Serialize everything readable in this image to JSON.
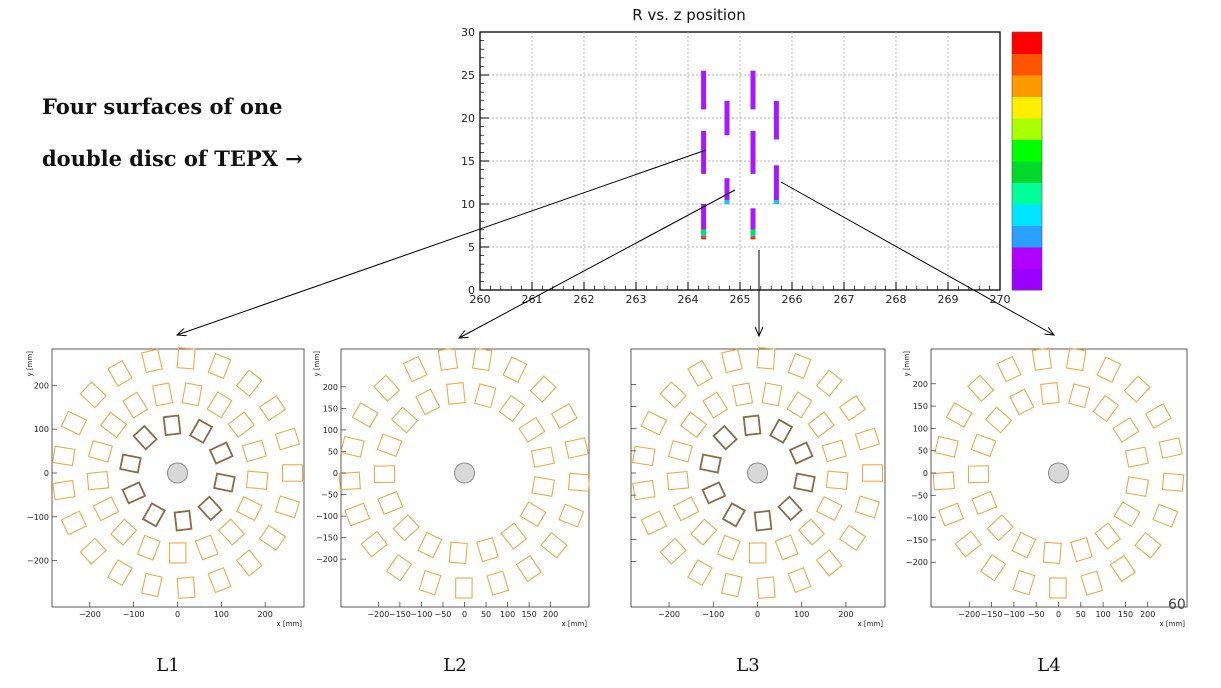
{
  "caption": {
    "line1": "Four surfaces of one",
    "line2": "double disc of TEPX →"
  },
  "colors": {
    "outer_modules": "#f2a94b",
    "inner_modules": "#8b6a4a",
    "beampipe_fill": "#d8d8d8",
    "beampipe_stroke": "#888888",
    "clusters": "#a619ff",
    "grid": "#9a9a9a"
  },
  "chart_data": {
    "type": "scatter",
    "title": "R vs. z position",
    "xlim": [
      260,
      270
    ],
    "ylim": [
      0,
      30
    ],
    "x_ticks": [
      "260",
      "261",
      "262",
      "263",
      "264",
      "265",
      "266",
      "267",
      "268",
      "269",
      "270"
    ],
    "y_ticks": [
      "0",
      "5",
      "10",
      "15",
      "20",
      "25",
      "30"
    ],
    "grid": true,
    "colorbar": [
      "#9b00ff",
      "#b000ff",
      "#2aa0ff",
      "#00e5ff",
      "#00ff9a",
      "#00d92a",
      "#00ff00",
      "#aaff00",
      "#ffee00",
      "#ff9900",
      "#ff5500",
      "#ff0000"
    ],
    "series": [
      {
        "name": "L1",
        "z": 264.3,
        "segments": [
          [
            6,
            10
          ],
          [
            13.5,
            18.5
          ],
          [
            21,
            25.5
          ]
        ]
      },
      {
        "name": "L2",
        "z": 264.75,
        "segments": [
          [
            10,
            13
          ],
          [
            18,
            22
          ]
        ]
      },
      {
        "name": "L3",
        "z": 265.25,
        "segments": [
          [
            6,
            9.5
          ],
          [
            13.5,
            18.5
          ],
          [
            21,
            25.5
          ]
        ]
      },
      {
        "name": "L4",
        "z": 265.7,
        "segments": [
          [
            10,
            14.5
          ],
          [
            17.5,
            22
          ]
        ]
      }
    ]
  },
  "panels": [
    {
      "name": "L1",
      "has_inner_ring": true,
      "x_ticks": [
        "−200",
        "−100",
        "0",
        "100",
        "200"
      ],
      "x_tick_vals": [
        -200,
        -100,
        0,
        100,
        200
      ]
    },
    {
      "name": "L2",
      "has_inner_ring": false,
      "x_ticks": [
        "−200",
        "−150",
        "−100",
        "−50",
        "0",
        "50",
        "100",
        "150",
        "200"
      ],
      "x_tick_vals": [
        -200,
        -150,
        -100,
        -50,
        0,
        50,
        100,
        150,
        200
      ]
    },
    {
      "name": "L3",
      "has_inner_ring": true,
      "x_ticks": [
        "−200",
        "−100",
        "0",
        "100",
        "200"
      ],
      "x_tick_vals": [
        -200,
        -100,
        0,
        100,
        200
      ]
    },
    {
      "name": "L4",
      "has_inner_ring": false,
      "x_ticks": [
        "−200",
        "−150",
        "−100",
        "−50",
        "0",
        "50",
        "100",
        "150",
        "200"
      ],
      "x_tick_vals": [
        -200,
        -150,
        -100,
        -50,
        0,
        50,
        100,
        150,
        200
      ]
    }
  ],
  "panel_axes": {
    "x_label": "x [mm]",
    "y_label": "y [mm]",
    "y_ticks": [
      "200",
      "150",
      "100",
      "50",
      "0",
      "−50",
      "−100",
      "−150",
      "−200"
    ],
    "y_tick_vals": [
      200,
      150,
      100,
      50,
      0,
      -50,
      -100,
      -150,
      -200
    ],
    "y_ticks_l1": [
      "200",
      "100",
      "0",
      "−100",
      "−200"
    ],
    "y_tick_vals_l1": [
      200,
      100,
      0,
      -100,
      -200
    ]
  },
  "page_number": "60"
}
